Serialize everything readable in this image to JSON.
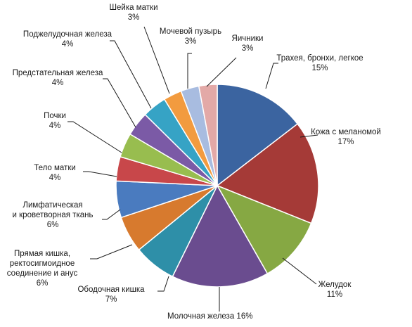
{
  "chart_data": {
    "type": "pie",
    "start_angle_deg": 0,
    "direction": "clockwise",
    "slices": [
      {
        "name": "Трахея, бронхи, легкое",
        "value": 15,
        "label": "15%",
        "color": "#3B64A0"
      },
      {
        "name": "Кожа с меланомой",
        "value": 17,
        "label": "17%",
        "color": "#A53A37"
      },
      {
        "name": "Желудок",
        "value": 11,
        "label": "11%",
        "color": "#86A843"
      },
      {
        "name": "Молочная железа",
        "value": 16,
        "label": "16%",
        "color": "#6A4C8F"
      },
      {
        "name": "Ободочная кишка",
        "value": 7,
        "label": "7%",
        "color": "#2E8FA8"
      },
      {
        "name": "Прямая кишка, ректосигмоидное соединение и анус",
        "value": 6,
        "label": "6%",
        "color": "#D77A2E"
      },
      {
        "name": "Лимфатическая и кроветворная ткань",
        "value": 6,
        "label": "6%",
        "color": "#4A7BBF"
      },
      {
        "name": "Тело матки",
        "value": 4,
        "label": "4%",
        "color": "#C8474A"
      },
      {
        "name": "Почки",
        "value": 4,
        "label": "4%",
        "color": "#98BD4F"
      },
      {
        "name": "Предстательная железа",
        "value": 4,
        "label": "4%",
        "color": "#7B5AA6"
      },
      {
        "name": "Поджелудочная железа",
        "value": 4,
        "label": "4%",
        "color": "#36A3C5"
      },
      {
        "name": "Шейка матки",
        "value": 3,
        "label": "3%",
        "color": "#F29B3F"
      },
      {
        "name": "Мочевой пузырь",
        "value": 3,
        "label": "3%",
        "color": "#A8BCE0"
      },
      {
        "name": "Яичники",
        "value": 3,
        "label": "3%",
        "color": "#E3A9A7"
      }
    ],
    "label_lines": [
      [
        "Трахея, бронхи, легкое",
        "15%"
      ],
      [
        "Кожа с меланомой",
        "17%"
      ],
      [
        "Желудок",
        "11%"
      ],
      [
        "Молочная железа 16%"
      ],
      [
        "Ободочная кишка",
        "7%"
      ],
      [
        "Прямая  кишка,",
        "ректосигмоидное",
        "соединение и анус",
        "6%"
      ],
      [
        "Лимфатическая",
        "и кроветворная ткань",
        "6%"
      ],
      [
        "Тело матки",
        "4%"
      ],
      [
        "Почки",
        "4%"
      ],
      [
        "Предстательная железа",
        "4%"
      ],
      [
        "Поджелудочная железа",
        "4%"
      ],
      [
        "Шейка матки",
        "3%"
      ],
      [
        "Мочевой пузырь",
        "3%"
      ],
      [
        "Яичники",
        "3%"
      ]
    ]
  }
}
